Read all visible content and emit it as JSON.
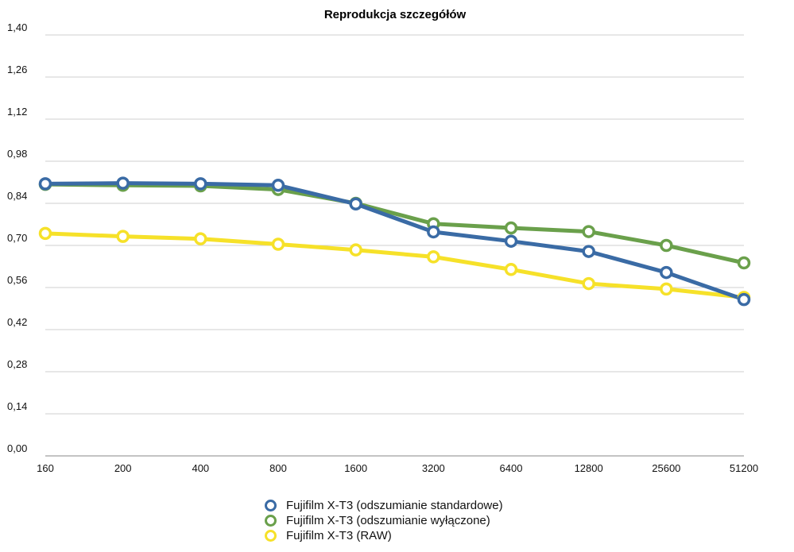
{
  "chart_data": {
    "type": "line",
    "title": "Reprodukcja szczegółów",
    "xlabel": "",
    "ylabel": "",
    "categories": [
      "160",
      "200",
      "400",
      "800",
      "1600",
      "3200",
      "6400",
      "12800",
      "25600",
      "51200"
    ],
    "yticks": [
      "0,00",
      "0,14",
      "0,28",
      "0,42",
      "0,56",
      "0,70",
      "0,84",
      "0,98",
      "1,12",
      "1,26",
      "1,40"
    ],
    "ylim": [
      0,
      1.4
    ],
    "grid": true,
    "legend_position": "bottom-center",
    "series": [
      {
        "name": "Fujifilm X-T3 (odszumianie standardowe)",
        "color": "#3a6ba5",
        "values": [
          0.905,
          0.907,
          0.905,
          0.9,
          0.838,
          0.745,
          0.714,
          0.68,
          0.61,
          0.52
        ]
      },
      {
        "name": "Fujifilm X-T3 (odszumianie wyłączone)",
        "color": "#6aa04b",
        "values": [
          0.903,
          0.9,
          0.898,
          0.886,
          0.84,
          0.772,
          0.758,
          0.746,
          0.7,
          0.642
        ]
      },
      {
        "name": "Fujifilm X-T3 (RAW)",
        "color": "#f6e129",
        "values": [
          0.74,
          0.73,
          0.722,
          0.704,
          0.685,
          0.662,
          0.62,
          0.573,
          0.555,
          0.527
        ]
      }
    ]
  }
}
